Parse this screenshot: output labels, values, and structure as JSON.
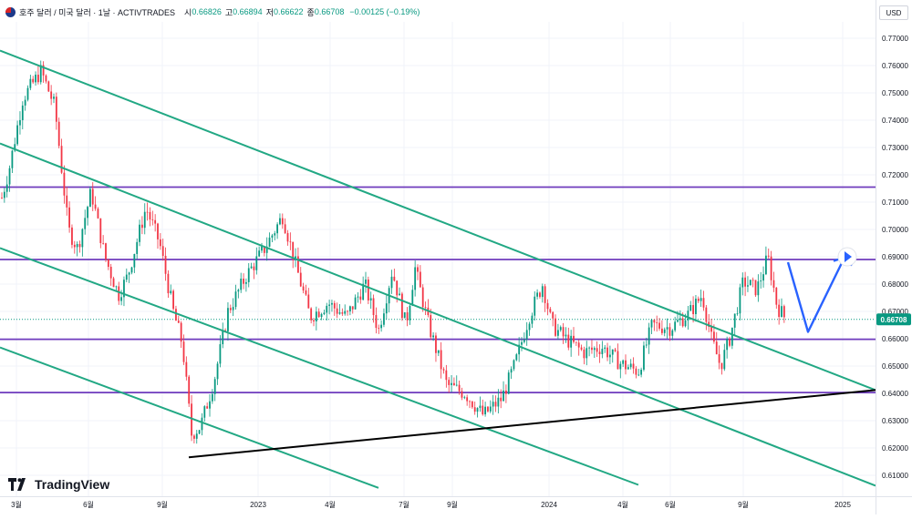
{
  "header": {
    "title": "호주 달러 / 미국 달러 · 1날 · ACTIVTRADES",
    "open_label": "시",
    "open": "0.66826",
    "high_label": "고",
    "high": "0.66894",
    "low_label": "저",
    "low": "0.66622",
    "close_label": "종",
    "close": "0.66708",
    "change": "−0.00125 (−0.19%)",
    "currency": "USD"
  },
  "brand": {
    "name": "TradingView",
    "icon": "tradingview-logo-icon"
  },
  "colors": {
    "up": "#089981",
    "down": "#f23645",
    "channel": "#22a884",
    "level": "#6f3bbd",
    "trend": "#000000",
    "projection": "#2962ff",
    "price_tag": "#089981"
  },
  "chart_data": {
    "type": "candlestick",
    "symbol": "AUD/USD",
    "interval": "1D",
    "ylim": [
      0.6056,
      0.7781
    ],
    "y_ticks": [
      "0.61000",
      "0.62000",
      "0.63000",
      "0.64000",
      "0.65000",
      "0.66000",
      "0.67000",
      "0.68000",
      "0.69000",
      "0.70000",
      "0.71000",
      "0.72000",
      "0.73000",
      "0.74000",
      "0.75000",
      "0.76000",
      "0.77000"
    ],
    "x_ticks": [
      "3월",
      "6월",
      "9월",
      "2023",
      "4월",
      "7월",
      "9월",
      "2024",
      "4월",
      "6월",
      "9월",
      "2025"
    ],
    "last_price": "0.66708",
    "price_path": [
      [
        0,
        0.709
      ],
      [
        10,
        0.722
      ],
      [
        25,
        0.748
      ],
      [
        45,
        0.758
      ],
      [
        60,
        0.745
      ],
      [
        75,
        0.7
      ],
      [
        85,
        0.693
      ],
      [
        100,
        0.714
      ],
      [
        115,
        0.69
      ],
      [
        130,
        0.676
      ],
      [
        140,
        0.683
      ],
      [
        160,
        0.708
      ],
      [
        175,
        0.695
      ],
      [
        190,
        0.67
      ],
      [
        200,
        0.658
      ],
      [
        210,
        0.625
      ],
      [
        220,
        0.628
      ],
      [
        235,
        0.645
      ],
      [
        250,
        0.67
      ],
      [
        270,
        0.683
      ],
      [
        290,
        0.693
      ],
      [
        310,
        0.705
      ],
      [
        325,
        0.686
      ],
      [
        340,
        0.668
      ],
      [
        360,
        0.673
      ],
      [
        380,
        0.668
      ],
      [
        400,
        0.68
      ],
      [
        415,
        0.663
      ],
      [
        430,
        0.685
      ],
      [
        445,
        0.665
      ],
      [
        455,
        0.686
      ],
      [
        470,
        0.665
      ],
      [
        490,
        0.643
      ],
      [
        510,
        0.64
      ],
      [
        530,
        0.632
      ],
      [
        550,
        0.638
      ],
      [
        565,
        0.651
      ],
      [
        580,
        0.668
      ],
      [
        595,
        0.68
      ],
      [
        605,
        0.665
      ],
      [
        620,
        0.66
      ],
      [
        640,
        0.655
      ],
      [
        660,
        0.657
      ],
      [
        680,
        0.651
      ],
      [
        700,
        0.648
      ],
      [
        715,
        0.665
      ],
      [
        735,
        0.664
      ],
      [
        755,
        0.669
      ],
      [
        770,
        0.676
      ],
      [
        780,
        0.66
      ],
      [
        790,
        0.65
      ],
      [
        800,
        0.66
      ],
      [
        815,
        0.681
      ],
      [
        830,
        0.678
      ],
      [
        842,
        0.69
      ],
      [
        852,
        0.672
      ],
      [
        862,
        0.667
      ]
    ],
    "horizontal_levels": [
      0.7155,
      0.689,
      0.6598,
      0.6403
    ],
    "channel_lines": [
      {
        "from": [
          0,
          0.7655
        ],
        "to": [
          960,
          0.6412
        ]
      },
      {
        "from": [
          0,
          0.7315
        ],
        "to": [
          960,
          0.6062
        ]
      },
      {
        "from": [
          0,
          0.6932
        ],
        "to": [
          700,
          0.6065
        ]
      },
      {
        "from": [
          0,
          0.6568
        ],
        "to": [
          415,
          0.6054
        ]
      }
    ],
    "trend_line": {
      "from": [
        207,
        0.6166
      ],
      "to": [
        960,
        0.6412
      ]
    },
    "projection": [
      [
        864,
        0.688
      ],
      [
        886,
        0.6625
      ],
      [
        926,
        0.6898
      ]
    ],
    "grid": true,
    "legend": "top-left"
  }
}
